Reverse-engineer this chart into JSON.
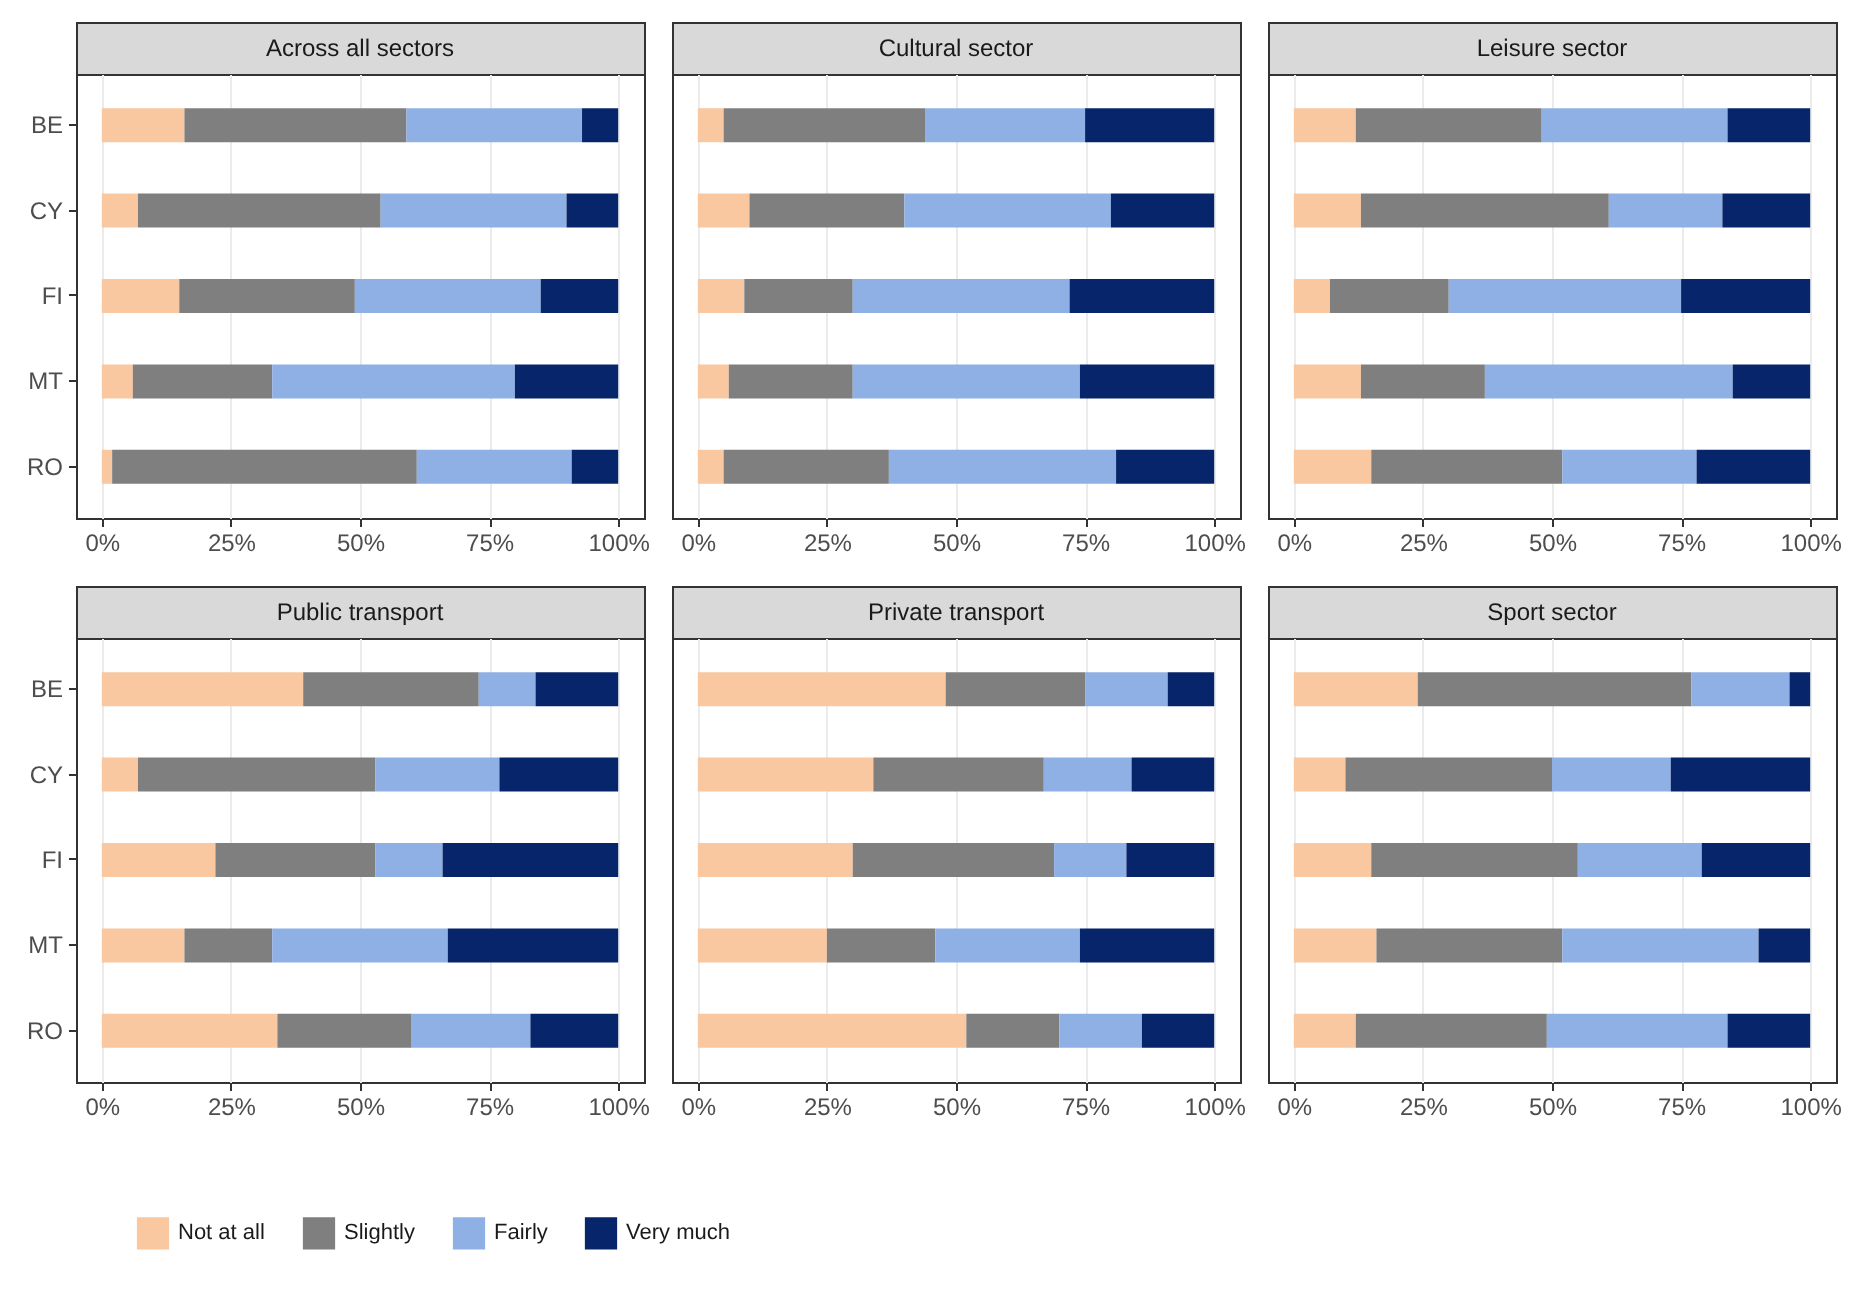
{
  "chart_data": [
    {
      "type": "bar",
      "orientation": "horizontal",
      "stacked": true,
      "title": "Across all sectors",
      "categories": [
        "BE",
        "CY",
        "FI",
        "MT",
        "RO"
      ],
      "xlim": [
        -5,
        105
      ],
      "xticks": [
        {
          "value": 0,
          "label": "0%"
        },
        {
          "value": 25,
          "label": "25%"
        },
        {
          "value": 50,
          "label": "50%"
        },
        {
          "value": 75,
          "label": "75%"
        },
        {
          "value": 100,
          "label": "100%"
        }
      ],
      "grid": "x",
      "legend": "bottom",
      "series": [
        {
          "name": "Not at all",
          "color": "#f9c8a0",
          "values": [
            16,
            7,
            15,
            6,
            2
          ]
        },
        {
          "name": "Slightly",
          "color": "#7f7f7f",
          "values": [
            43,
            47,
            34,
            27,
            59
          ]
        },
        {
          "name": "Fairly",
          "color": "#8eb0e4",
          "values": [
            34,
            36,
            36,
            47,
            30
          ]
        },
        {
          "name": "Very much",
          "color": "#06256a",
          "values": [
            7,
            10,
            15,
            20,
            9
          ]
        }
      ]
    },
    {
      "type": "bar",
      "orientation": "horizontal",
      "stacked": true,
      "title": "Cultural sector",
      "categories": [
        "BE",
        "CY",
        "FI",
        "MT",
        "RO"
      ],
      "xlim": [
        -5,
        105
      ],
      "xticks": [
        {
          "value": 0,
          "label": "0%"
        },
        {
          "value": 25,
          "label": "25%"
        },
        {
          "value": 50,
          "label": "50%"
        },
        {
          "value": 75,
          "label": "75%"
        },
        {
          "value": 100,
          "label": "100%"
        }
      ],
      "grid": "x",
      "legend": "bottom",
      "tick_labels": "x",
      "series": [
        {
          "name": "Not at all",
          "color": "#f9c8a0",
          "values": [
            5,
            10,
            9,
            6,
            5
          ]
        },
        {
          "name": "Slightly",
          "color": "#7f7f7f",
          "values": [
            39,
            30,
            21,
            24,
            32
          ]
        },
        {
          "name": "Fairly",
          "color": "#8eb0e4",
          "values": [
            31,
            40,
            42,
            44,
            44
          ]
        },
        {
          "name": "Very much",
          "color": "#06256a",
          "values": [
            25,
            20,
            28,
            26,
            19
          ]
        }
      ]
    },
    {
      "type": "bar",
      "orientation": "horizontal",
      "stacked": true,
      "title": "Leisure sector",
      "categories": [
        "BE",
        "CY",
        "FI",
        "MT",
        "RO"
      ],
      "xlim": [
        -5,
        105
      ],
      "xticks": [
        {
          "value": 0,
          "label": "0%"
        },
        {
          "value": 25,
          "label": "25%"
        },
        {
          "value": 50,
          "label": "50%"
        },
        {
          "value": 75,
          "label": "75%"
        },
        {
          "value": 100,
          "label": "100%"
        }
      ],
      "grid": "x",
      "legend": "bottom",
      "tick_labels": "x",
      "series": [
        {
          "name": "Not at all",
          "color": "#f9c8a0",
          "values": [
            12,
            13,
            7,
            13,
            15
          ]
        },
        {
          "name": "Slightly",
          "color": "#7f7f7f",
          "values": [
            36,
            48,
            23,
            24,
            37
          ]
        },
        {
          "name": "Fairly",
          "color": "#8eb0e4",
          "values": [
            36,
            22,
            45,
            48,
            26
          ]
        },
        {
          "name": "Very much",
          "color": "#06256a",
          "values": [
            16,
            17,
            25,
            15,
            22
          ]
        }
      ]
    },
    {
      "type": "bar",
      "orientation": "horizontal",
      "stacked": true,
      "title": "Public transport",
      "categories": [
        "BE",
        "CY",
        "FI",
        "MT",
        "RO"
      ],
      "xlim": [
        -5,
        105
      ],
      "xticks": [
        {
          "value": 0,
          "label": "0%"
        },
        {
          "value": 25,
          "label": "25%"
        },
        {
          "value": 50,
          "label": "50%"
        },
        {
          "value": 75,
          "label": "75%"
        },
        {
          "value": 100,
          "label": "100%"
        }
      ],
      "grid": "x",
      "legend": "bottom",
      "series": [
        {
          "name": "Not at all",
          "color": "#f9c8a0",
          "values": [
            39,
            7,
            22,
            16,
            34
          ]
        },
        {
          "name": "Slightly",
          "color": "#7f7f7f",
          "values": [
            34,
            46,
            31,
            17,
            26
          ]
        },
        {
          "name": "Fairly",
          "color": "#8eb0e4",
          "values": [
            11,
            24,
            13,
            34,
            23
          ]
        },
        {
          "name": "Very much",
          "color": "#06256a",
          "values": [
            16,
            23,
            34,
            33,
            17
          ]
        }
      ]
    },
    {
      "type": "bar",
      "orientation": "horizontal",
      "stacked": true,
      "title": "Private transport",
      "categories": [
        "BE",
        "CY",
        "FI",
        "MT",
        "RO"
      ],
      "xlim": [
        -5,
        105
      ],
      "xticks": [
        {
          "value": 0,
          "label": "0%"
        },
        {
          "value": 25,
          "label": "25%"
        },
        {
          "value": 50,
          "label": "50%"
        },
        {
          "value": 75,
          "label": "75%"
        },
        {
          "value": 100,
          "label": "100%"
        }
      ],
      "grid": "x",
      "legend": "bottom",
      "tick_labels": "x",
      "series": [
        {
          "name": "Not at all",
          "color": "#f9c8a0",
          "values": [
            48,
            34,
            30,
            25,
            52
          ]
        },
        {
          "name": "Slightly",
          "color": "#7f7f7f",
          "values": [
            27,
            33,
            39,
            21,
            18
          ]
        },
        {
          "name": "Fairly",
          "color": "#8eb0e4",
          "values": [
            16,
            17,
            14,
            28,
            16
          ]
        },
        {
          "name": "Very much",
          "color": "#06256a",
          "values": [
            9,
            16,
            17,
            26,
            14
          ]
        }
      ]
    },
    {
      "type": "bar",
      "orientation": "horizontal",
      "stacked": true,
      "title": "Sport sector",
      "categories": [
        "BE",
        "CY",
        "FI",
        "MT",
        "RO"
      ],
      "xlim": [
        -5,
        105
      ],
      "xticks": [
        {
          "value": 0,
          "label": "0%"
        },
        {
          "value": 25,
          "label": "25%"
        },
        {
          "value": 50,
          "label": "50%"
        },
        {
          "value": 75,
          "label": "75%"
        },
        {
          "value": 100,
          "label": "100%"
        }
      ],
      "grid": "x",
      "legend": "bottom",
      "tick_labels": "x",
      "series": [
        {
          "name": "Not at all",
          "color": "#f9c8a0",
          "values": [
            24,
            10,
            15,
            16,
            12
          ]
        },
        {
          "name": "Slightly",
          "color": "#7f7f7f",
          "values": [
            53,
            40,
            40,
            36,
            37
          ]
        },
        {
          "name": "Fairly",
          "color": "#8eb0e4",
          "values": [
            19,
            23,
            24,
            38,
            35
          ]
        },
        {
          "name": "Very much",
          "color": "#06256a",
          "values": [
            4,
            27,
            21,
            10,
            16
          ]
        }
      ]
    }
  ]
}
